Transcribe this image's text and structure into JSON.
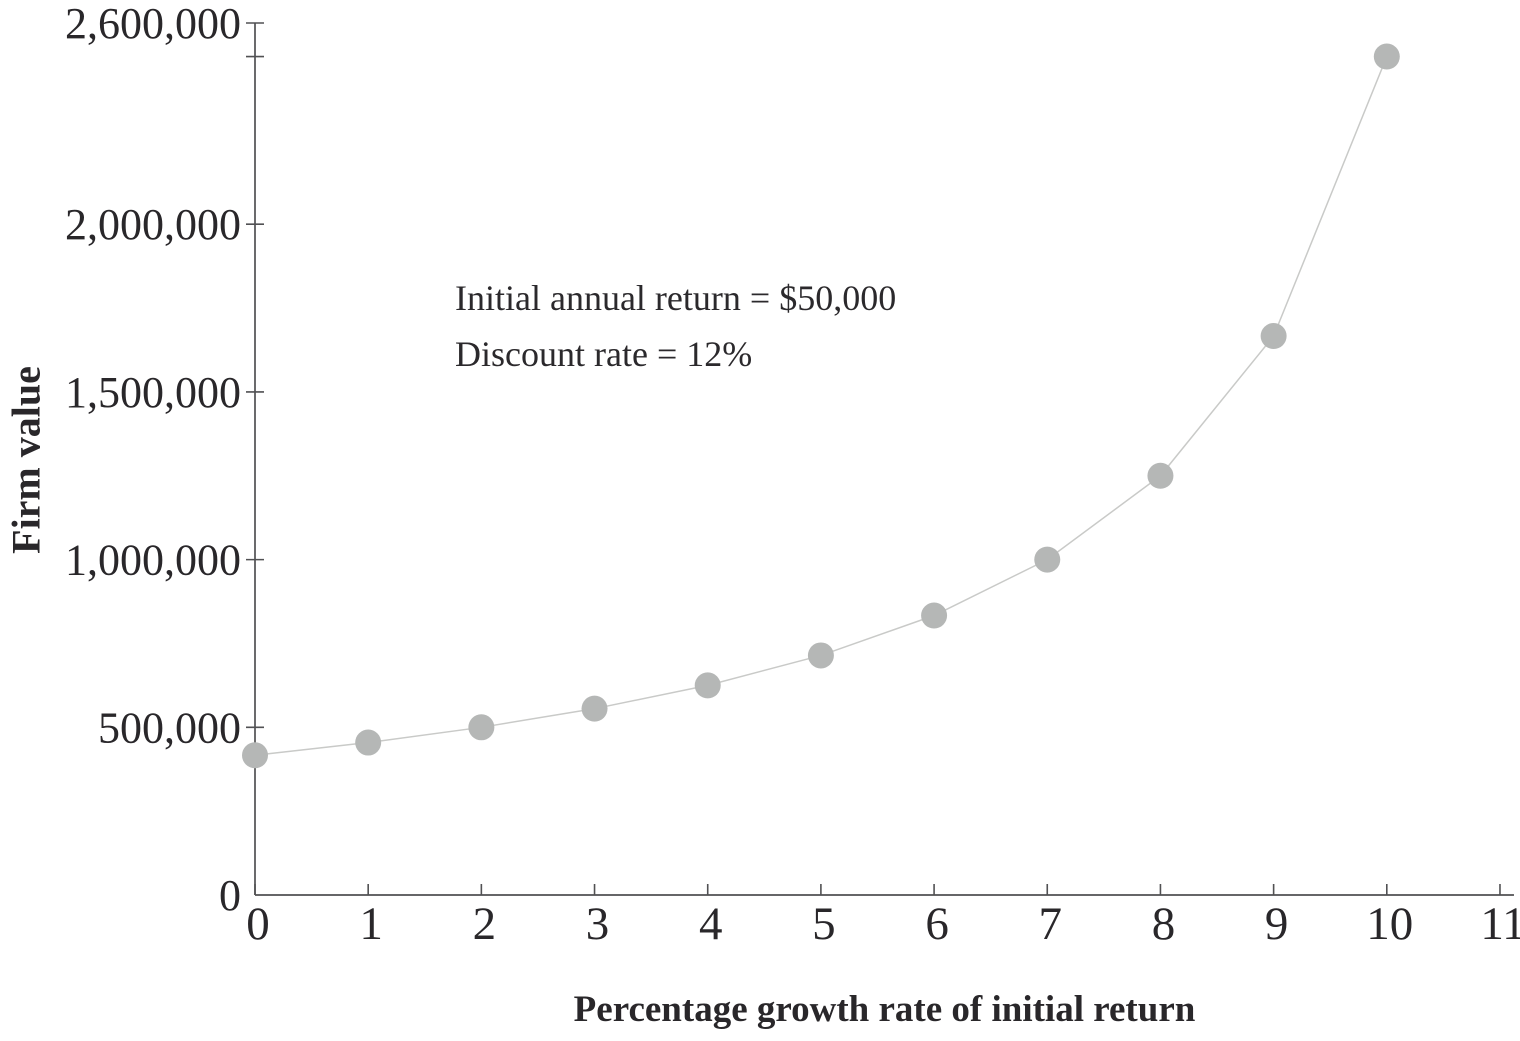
{
  "figure": {
    "background": "#ffffff",
    "text_color": "#29272a",
    "axis_color": "#515153",
    "point_color": "#b5b7b6",
    "line_color": "#c9cac8"
  },
  "annotation": {
    "line1": "Initial annual return = $50,000",
    "line2": "Discount rate = 12%"
  },
  "chart_data": {
    "type": "line",
    "title": "",
    "xlabel": "Percentage growth rate of initial return",
    "ylabel": "Firm value",
    "x": [
      0,
      1,
      2,
      3,
      4,
      5,
      6,
      7,
      8,
      9,
      10
    ],
    "values": [
      416667,
      454545,
      500000,
      555556,
      625000,
      714286,
      833333,
      1000000,
      1250000,
      1666667,
      2500000
    ],
    "xlim": [
      0,
      11
    ],
    "ylim": [
      0,
      2600000
    ],
    "grid": false,
    "legend_position": "none",
    "marker": "circle",
    "x_ticks": [
      {
        "v": 0,
        "label": "0"
      },
      {
        "v": 1,
        "label": "1"
      },
      {
        "v": 2,
        "label": "2"
      },
      {
        "v": 3,
        "label": "3"
      },
      {
        "v": 4,
        "label": "4"
      },
      {
        "v": 5,
        "label": "5"
      },
      {
        "v": 6,
        "label": "6"
      },
      {
        "v": 7,
        "label": "7"
      },
      {
        "v": 8,
        "label": "8"
      },
      {
        "v": 9,
        "label": "9"
      },
      {
        "v": 10,
        "label": "10"
      },
      {
        "v": 11,
        "label": "11"
      }
    ],
    "y_ticks": [
      {
        "v": 0,
        "label": "0",
        "tick": false
      },
      {
        "v": 500000,
        "label": "500,000",
        "tick": true
      },
      {
        "v": 1000000,
        "label": "1,000,000",
        "tick": true
      },
      {
        "v": 1500000,
        "label": "1,500,000",
        "tick": true
      },
      {
        "v": 2000000,
        "label": "2,000,000",
        "tick": true
      },
      {
        "v": 2500000,
        "label": "",
        "tick": true
      },
      {
        "v": 2600000,
        "label": "2,600,000",
        "tick": true
      }
    ],
    "annotations": [
      "Initial annual return = $50,000",
      "Discount rate = 12%"
    ]
  }
}
